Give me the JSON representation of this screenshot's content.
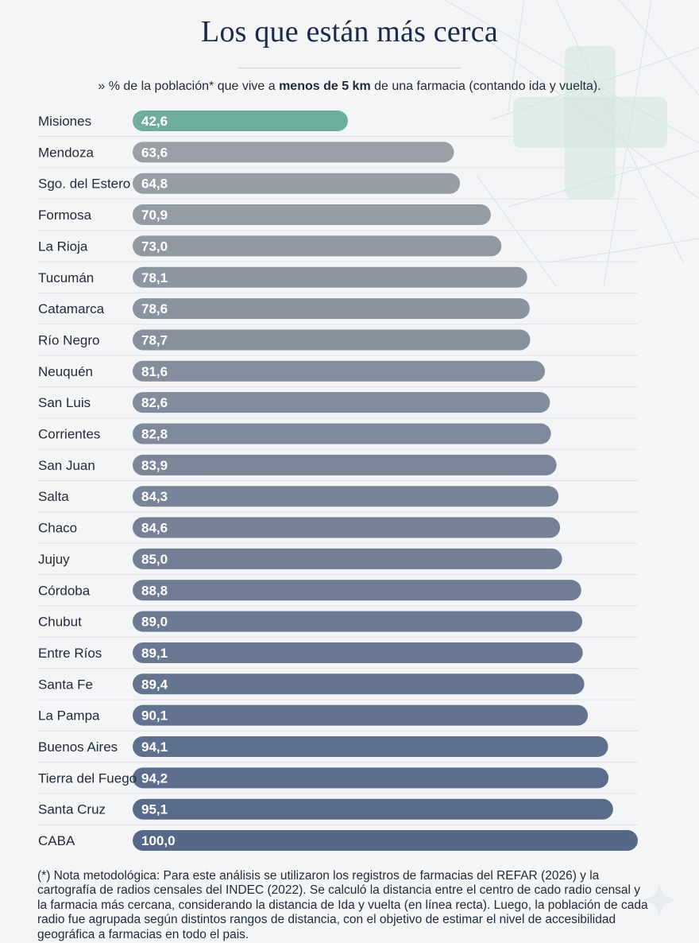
{
  "header": {
    "title": "Los que están más cerca",
    "subtitle_before": "» % de la población* que vive a ",
    "subtitle_bold": "menos de 5 km",
    "subtitle_after": " de una farmacia (contando ida y vuelta)."
  },
  "footer": {
    "note": "(*) Nota metodológica: Para este análisis se utilizaron los registros de farmacias del REFAR (2026) y la cartografía de radios censales del INDEC (2022). Se calculó la distancia entre el centro de cado radio censal y la farmacia más cercana, considerando la distancia de Ida y vuelta (en línea recta). Luego, la población de cada radio fue agrupada según distintos rangos de distancia, con el objetivo de estimar el nivel de accesibilidad geográfica a farmacias en todo el pais."
  },
  "decoration": {
    "background_motif": "pharmacy-cross-icon",
    "cross_color": "#cfe3dc"
  },
  "colors": {
    "highlight_bar": "#6fae9c",
    "bar_gradient_start": "#9aa0a6",
    "bar_gradient_end": "#56688a"
  },
  "chart_data": {
    "type": "bar",
    "orientation": "horizontal",
    "title": "Los que están más cerca",
    "categories": [
      "Misiones",
      "Mendoza",
      "Sgo. del Estero",
      "Formosa",
      "La Rioja",
      "Tucumán",
      "Catamarca",
      "Río Negro",
      "Neuquén",
      "San Luis",
      "Corrientes",
      "San Juan",
      "Salta",
      "Chaco",
      "Jujuy",
      "Córdoba",
      "Chubut",
      "Entre Ríos",
      "Santa Fe",
      "La Pampa",
      "Buenos Aires",
      "Tierra del Fuego",
      "Santa Cruz",
      "CABA"
    ],
    "values": [
      42.6,
      63.6,
      64.8,
      70.9,
      73.0,
      78.1,
      78.6,
      78.7,
      81.6,
      82.6,
      82.8,
      83.9,
      84.3,
      84.6,
      85.0,
      88.8,
      89.0,
      89.1,
      89.4,
      90.1,
      94.1,
      94.2,
      95.1,
      100.0
    ],
    "value_labels": [
      "42,6",
      "63,6",
      "64,8",
      "70,9",
      "73,0",
      "78,1",
      "78,6",
      "78,7",
      "81,6",
      "82,6",
      "82,8",
      "83,9",
      "84,3",
      "84,6",
      "85,0",
      "88,8",
      "89,0",
      "89,1",
      "89,4",
      "90,1",
      "94,1",
      "94,2",
      "95,1",
      "100,0"
    ],
    "highlighted_category": "Misiones",
    "xlim": [
      0,
      100
    ],
    "grid": true,
    "legend": "none"
  }
}
